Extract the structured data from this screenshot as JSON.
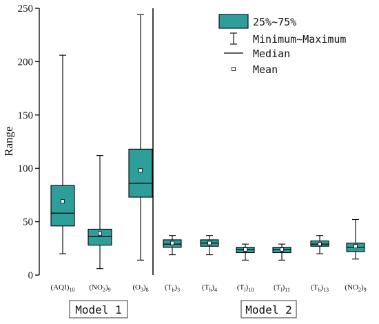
{
  "chart_data": {
    "type": "box",
    "ylabel": "Range",
    "ylim": [
      0,
      250
    ],
    "yticks": [
      0,
      50,
      100,
      150,
      200,
      250
    ],
    "box_color": "#2e9e9a",
    "groups": [
      {
        "label": "Model 1",
        "boxes": [
          {
            "label": "(AQI)",
            "sub": "10",
            "min": 20,
            "q1": 46,
            "median": 58,
            "q3": 84,
            "max": 206,
            "mean": 69
          },
          {
            "label": "(NO",
            "sub1": "2",
            "label2": ")",
            "sub": "9",
            "min": 6,
            "q1": 28,
            "median": 36,
            "q3": 43,
            "max": 112,
            "mean": 39
          },
          {
            "label": "(O",
            "sub1": "3",
            "label2": ")",
            "sub": "8",
            "min": 14,
            "q1": 73,
            "median": 86,
            "q3": 118,
            "max": 244,
            "mean": 98
          }
        ]
      },
      {
        "label": "Model 2",
        "boxes": [
          {
            "label": "(T",
            "sub1": "h",
            "label2": ")",
            "sub": "3",
            "min": 19,
            "q1": 26,
            "median": 29,
            "q3": 33,
            "max": 37,
            "mean": 30
          },
          {
            "label": "(T",
            "sub1": "h",
            "label2": ")",
            "sub": "4",
            "min": 19,
            "q1": 27,
            "median": 30,
            "q3": 33,
            "max": 37,
            "mean": 30
          },
          {
            "label": "(T",
            "sub1": "l",
            "label2": ")",
            "sub": "10",
            "min": 14,
            "q1": 21,
            "median": 24,
            "q3": 26,
            "max": 29,
            "mean": 24
          },
          {
            "label": "(T",
            "sub1": "l",
            "label2": ")",
            "sub": "11",
            "min": 14,
            "q1": 21,
            "median": 24,
            "q3": 26,
            "max": 29,
            "mean": 24
          },
          {
            "label": "(T",
            "sub1": "h",
            "label2": ")",
            "sub": "13",
            "min": 20,
            "q1": 27,
            "median": 29,
            "q3": 32,
            "max": 37,
            "mean": 29
          },
          {
            "label": "(NO",
            "sub1": "2",
            "label2": ")",
            "sub": "9",
            "min": 15,
            "q1": 22,
            "median": 26,
            "q3": 30,
            "max": 52,
            "mean": 27
          }
        ]
      }
    ],
    "legend": {
      "position": "top-right",
      "items": [
        "25%~75%",
        "Minimum~Maximum",
        "Median",
        "Mean"
      ]
    }
  }
}
